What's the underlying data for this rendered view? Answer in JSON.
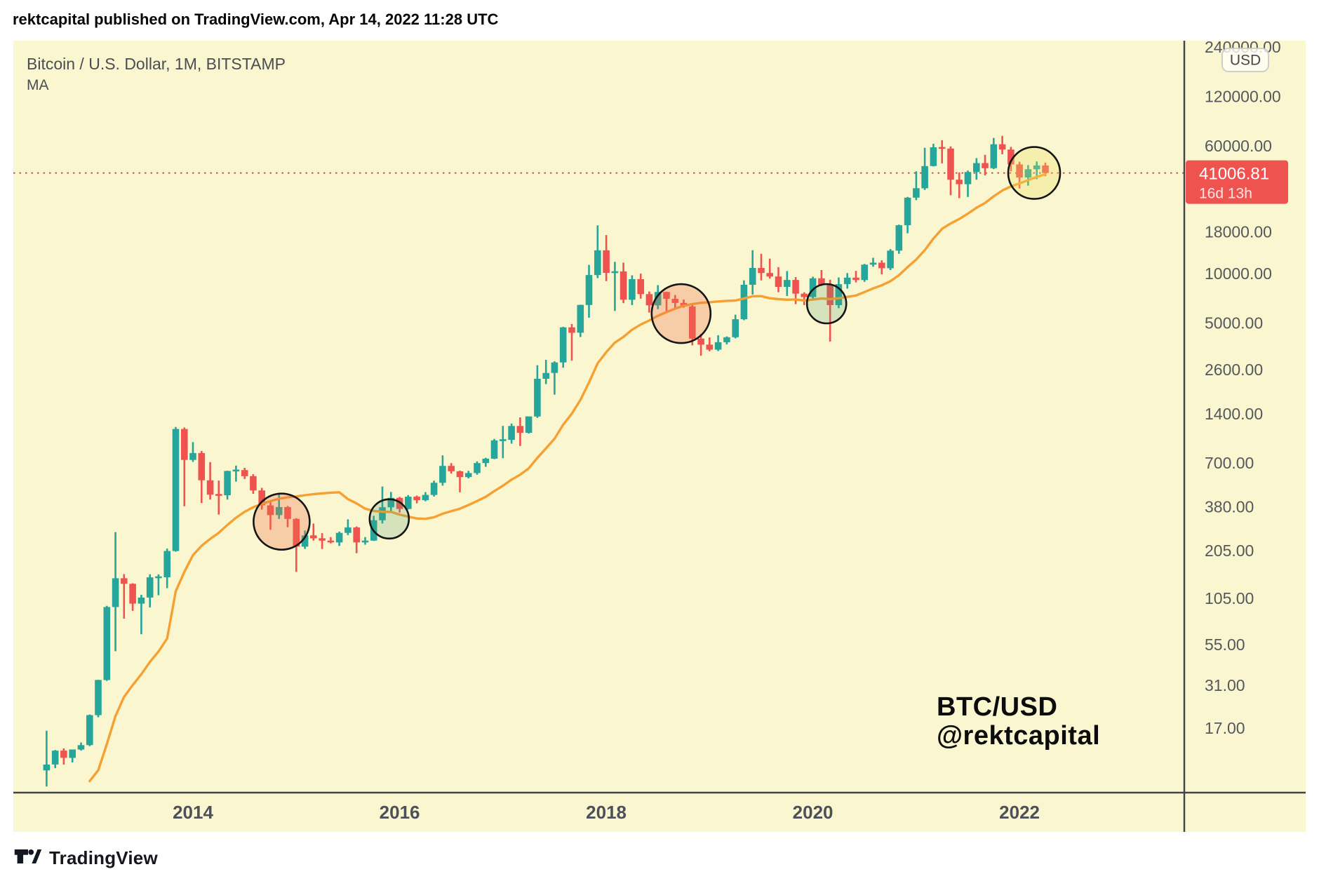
{
  "publish_bar": {
    "text": "rektcapital published on TradingView.com, Apr 14, 2022 11:28 UTC"
  },
  "chart_header": {
    "symbol_title": "Bitcoin / U.S. Dollar, 1M, BITSTAMP",
    "indicator_label": "MA"
  },
  "watermark": {
    "line1": "BTC/USD",
    "line2": "@rektcapital"
  },
  "footer": {
    "brand": "TradingView"
  },
  "price_axis": {
    "currency_button": "USD",
    "ticks": [
      "240000.00",
      "120000.00",
      "60000.00",
      "18000.00",
      "10000.00",
      "5000.00",
      "2600.00",
      "1400.00",
      "700.00",
      "380.00",
      "205.00",
      "105.00",
      "55.00",
      "31.00",
      "17.00"
    ],
    "last_price_label": {
      "price": "41006.81",
      "countdown": "16d 13h"
    }
  },
  "time_axis": {
    "labels": [
      "2014",
      "2016",
      "2018",
      "2020",
      "2022"
    ]
  },
  "colors": {
    "chart_bg": "#FAF7D0",
    "candle_up": "#26A69A",
    "candle_down": "#EF5350",
    "ma_line": "#F5A031",
    "axis_line": "#40444B",
    "tick_text": "#54575D",
    "year_text": "#4C5058",
    "dotted_line": "#C2574F",
    "tag_bg": "#EF5350",
    "tag_text": "#FFFFFF",
    "circle_stroke": "#141414",
    "usd_button_border": "#C8CAC5",
    "usd_button_text": "#42464D"
  },
  "chart_data": {
    "type": "candlestick",
    "symbol": "BTC/USD",
    "exchange": "BITSTAMP",
    "timeframe": "1M",
    "scale": "log",
    "first_month": "2012-08",
    "last_price": 41006.81,
    "months": [
      [
        9.4,
        16.4,
        7.5,
        10.2
      ],
      [
        10.2,
        12.5,
        9.7,
        12.4
      ],
      [
        12.4,
        12.8,
        10.2,
        11.2
      ],
      [
        11.2,
        12.6,
        10.5,
        12.6
      ],
      [
        12.6,
        13.9,
        12.4,
        13.4
      ],
      [
        13.4,
        20.6,
        13.2,
        20.4
      ],
      [
        20.4,
        33.5,
        19.8,
        33.4
      ],
      [
        33.4,
        94.5,
        33,
        93
      ],
      [
        93,
        266,
        50,
        139.2
      ],
      [
        139.2,
        147.5,
        79,
        128.8
      ],
      [
        128.8,
        129.8,
        88.1,
        97.5
      ],
      [
        97.5,
        110.3,
        63.5,
        106.2
      ],
      [
        106.2,
        147,
        92.4,
        141
      ],
      [
        141,
        147,
        109.7,
        141.1
      ],
      [
        141.1,
        211,
        121.1,
        204
      ],
      [
        204,
        1163,
        202,
        1130
      ],
      [
        1130,
        1153,
        382,
        732
      ],
      [
        732,
        940,
        712,
        806
      ],
      [
        806,
        830,
        400,
        550
      ],
      [
        550,
        710,
        420,
        450
      ],
      [
        450,
        548,
        340,
        446
      ],
      [
        446,
        630,
        420,
        627
      ],
      [
        627,
        676,
        540,
        635
      ],
      [
        635,
        655,
        560,
        583
      ],
      [
        583,
        600,
        455,
        477
      ],
      [
        477,
        495,
        365,
        387
      ],
      [
        387,
        412,
        275,
        338
      ],
      [
        338,
        460,
        320,
        378
      ],
      [
        378,
        384,
        285,
        320
      ],
      [
        320,
        323,
        152,
        217
      ],
      [
        217,
        272,
        210,
        254
      ],
      [
        254,
        300,
        236,
        244
      ],
      [
        244,
        262,
        210,
        236
      ],
      [
        236,
        248,
        227,
        230
      ],
      [
        230,
        268,
        219,
        263
      ],
      [
        263,
        318,
        255,
        284
      ],
      [
        284,
        288,
        198,
        230
      ],
      [
        230,
        248,
        223,
        236
      ],
      [
        236,
        334,
        235,
        314
      ],
      [
        314,
        504,
        300,
        377
      ],
      [
        377,
        467,
        350,
        430
      ],
      [
        430,
        436,
        350,
        368
      ],
      [
        368,
        447,
        365,
        437
      ],
      [
        437,
        444,
        398,
        416
      ],
      [
        416,
        466,
        410,
        448
      ],
      [
        448,
        547,
        438,
        531
      ],
      [
        531,
        780,
        510,
        673
      ],
      [
        673,
        700,
        605,
        624
      ],
      [
        624,
        630,
        465,
        575
      ],
      [
        575,
        628,
        565,
        609
      ],
      [
        609,
        718,
        595,
        700
      ],
      [
        700,
        755,
        665,
        745
      ],
      [
        745,
        982,
        740,
        963
      ],
      [
        963,
        1180,
        750,
        970
      ],
      [
        970,
        1220,
        920,
        1179
      ],
      [
        1179,
        1330,
        890,
        1071
      ],
      [
        1071,
        1347,
        1060,
        1347
      ],
      [
        1347,
        2760,
        1320,
        2286
      ],
      [
        2286,
        2980,
        2120,
        2480
      ],
      [
        2480,
        2920,
        1830,
        2875
      ],
      [
        2875,
        4740,
        2670,
        4703
      ],
      [
        4703,
        4930,
        2950,
        4360
      ],
      [
        4360,
        6460,
        4110,
        6440
      ],
      [
        6440,
        11300,
        5380,
        9800
      ],
      [
        9800,
        19666,
        9380,
        13850
      ],
      [
        13850,
        17170,
        9000,
        10100
      ],
      [
        10100,
        11790,
        5920,
        10300
      ],
      [
        10300,
        11660,
        6600,
        6928
      ],
      [
        6928,
        9760,
        6430,
        9240
      ],
      [
        9240,
        9990,
        7030,
        7494
      ],
      [
        7494,
        7780,
        5780,
        6404
      ],
      [
        6404,
        8500,
        6070,
        7730
      ],
      [
        7730,
        7760,
        5880,
        7011
      ],
      [
        7011,
        7410,
        6120,
        6625
      ],
      [
        6625,
        6940,
        6200,
        6305
      ],
      [
        6305,
        6540,
        3650,
        4017
      ],
      [
        4017,
        4280,
        3160,
        3689
      ],
      [
        3689,
        4080,
        3360,
        3437
      ],
      [
        3437,
        4210,
        3370,
        3816
      ],
      [
        3816,
        4140,
        3700,
        4092
      ],
      [
        4092,
        5620,
        4030,
        5269
      ],
      [
        5269,
        9090,
        5200,
        8545
      ],
      [
        8545,
        13880,
        7450,
        10818
      ],
      [
        10818,
        13200,
        9080,
        10080
      ],
      [
        10080,
        12320,
        9320,
        9594
      ],
      [
        9594,
        10950,
        7700,
        8290
      ],
      [
        8290,
        10350,
        7300,
        9140
      ],
      [
        9140,
        9520,
        6510,
        7542
      ],
      [
        7542,
        7690,
        6430,
        7189
      ],
      [
        7189,
        9570,
        6850,
        9350
      ],
      [
        9350,
        10500,
        8400,
        8543
      ],
      [
        8543,
        9170,
        3850,
        6424
      ],
      [
        6424,
        9460,
        6150,
        8620
      ],
      [
        8620,
        10070,
        8100,
        9446
      ],
      [
        9446,
        10380,
        8830,
        9135
      ],
      [
        9135,
        11440,
        8900,
        11335
      ],
      [
        11335,
        12480,
        11000,
        11650
      ],
      [
        11650,
        12050,
        9880,
        10776
      ],
      [
        10776,
        14100,
        10500,
        13797
      ],
      [
        13797,
        19880,
        13200,
        19698
      ],
      [
        19698,
        29300,
        17600,
        28990
      ],
      [
        28990,
        42000,
        28000,
        33108
      ],
      [
        33108,
        58350,
        32300,
        45164
      ],
      [
        45164,
        61800,
        44950,
        58763
      ],
      [
        58763,
        64895,
        46930,
        57720
      ],
      [
        57720,
        59500,
        30000,
        37298
      ],
      [
        37298,
        41330,
        28800,
        35026
      ],
      [
        35026,
        42448,
        29300,
        41553
      ],
      [
        41553,
        50500,
        37300,
        47110
      ],
      [
        47110,
        52920,
        39600,
        43824
      ],
      [
        43824,
        66999,
        43283,
        61318
      ],
      [
        61318,
        69000,
        53300,
        56950
      ],
      [
        56950,
        59100,
        42000,
        46216
      ],
      [
        46216,
        47990,
        32950,
        38491
      ],
      [
        38491,
        45821,
        34322,
        43193
      ],
      [
        43193,
        48240,
        37550,
        45538
      ],
      [
        45538,
        47448,
        39200,
        41006.81
      ]
    ],
    "ma": {
      "type": "SMA",
      "length": 20,
      "color": "#F5A031",
      "seed_closes_before_first_month": [
        8,
        5,
        3.3,
        3,
        4.7,
        5.3,
        4.9,
        4.9,
        5,
        5.1,
        6.7,
        9.4
      ]
    },
    "annotations": [
      {
        "name": "ma-retest-circle-2014",
        "month_index": 27.3,
        "price": 308,
        "r": 40,
        "fill": "rgba(238,110,70,0.30)"
      },
      {
        "name": "ma-retest-circle-2015",
        "month_index": 39.8,
        "price": 320,
        "r": 28,
        "fill": "rgba(80,160,120,0.22)"
      },
      {
        "name": "ma-retest-circle-2018",
        "month_index": 73.7,
        "price": 5700,
        "r": 42,
        "fill": "rgba(238,110,70,0.30)"
      },
      {
        "name": "ma-retest-circle-2020",
        "month_index": 90.6,
        "price": 6550,
        "r": 28,
        "fill": "rgba(80,160,120,0.22)"
      },
      {
        "name": "ma-retest-circle-2022",
        "month_index": 114.7,
        "price": 41000,
        "r": 37,
        "fill": "rgba(240,220,90,0.30)"
      }
    ],
    "ylim_labels": [
      17,
      240000
    ],
    "grid": false,
    "legend_position": "none"
  }
}
